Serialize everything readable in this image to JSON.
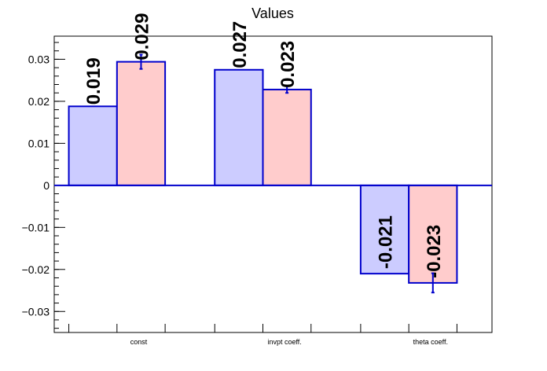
{
  "chart_data": {
    "type": "bar",
    "title": "Values",
    "xlabel": "",
    "ylabel": "",
    "categories": [
      "const",
      "invpt coeff.",
      "theta coeff."
    ],
    "series": [
      {
        "values": [
          0.0188,
          0.0275,
          -0.021
        ],
        "labels": [
          "0.019",
          "0.027",
          "-0.021"
        ],
        "errors": [
          0,
          0,
          0
        ],
        "color": "#ccccff"
      },
      {
        "values": [
          0.0294,
          0.0228,
          -0.0232
        ],
        "labels": [
          "0.029",
          "0.023",
          "-0.023"
        ],
        "errors": [
          0.0017,
          0.0008,
          0.0023
        ],
        "color": "#ffcccc"
      }
    ],
    "ylim": [
      -0.035,
      0.0355
    ],
    "yticks": [
      -0.03,
      -0.02,
      -0.01,
      0,
      0.01,
      0.02,
      0.03
    ],
    "ytick_labels": [
      "−0.03",
      "−0.02",
      "−0.01",
      "0",
      "0.01",
      "0.02",
      "0.03"
    ],
    "bar_edge_color": "#0000cc",
    "grid": false,
    "legend": "none"
  }
}
